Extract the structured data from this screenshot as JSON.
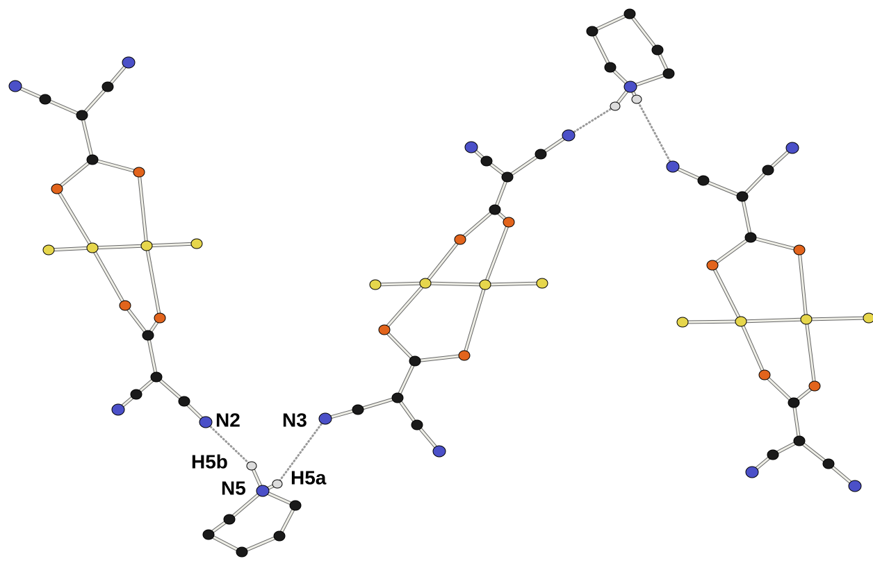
{
  "labels": {
    "n2": "N2",
    "n3": "N3",
    "h5b": "H5b",
    "n5": "N5",
    "h5a": "H5a"
  }
}
